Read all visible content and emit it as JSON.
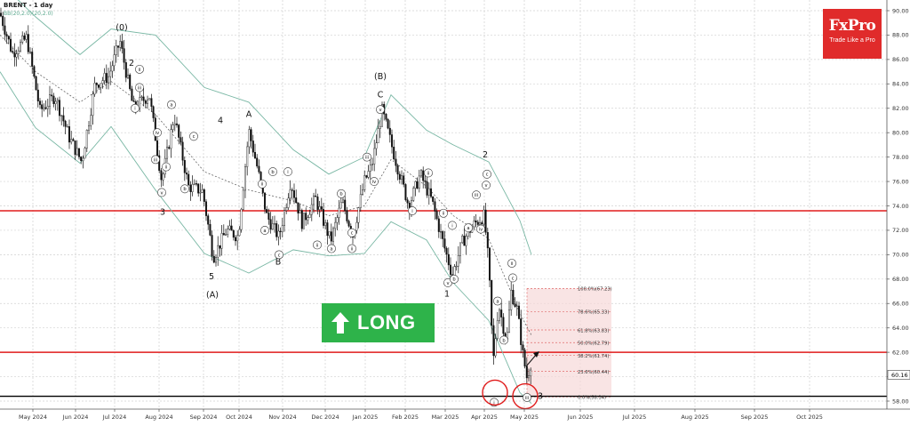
{
  "header": {
    "symbol": "BRENT - 1 day",
    "indicator": "BB(20,2.0)(20,2.0)"
  },
  "brand": {
    "name": "FxPro",
    "tagline": "Trade Like a Pro",
    "color": "#e02b2b"
  },
  "signal": {
    "label": "LONG",
    "color": "#2eb34a",
    "arrow_icon": "arrow-up-icon"
  },
  "chart_data": {
    "type": "candlestick",
    "instrument": "BRENT",
    "timeframe": "1 day",
    "ylim": [
      57.4,
      92.3
    ],
    "y_ticks": [
      58.0,
      60.0,
      62.0,
      64.0,
      66.0,
      68.0,
      70.0,
      72.0,
      74.0,
      76.0,
      78.0,
      80.0,
      82.0,
      84.0,
      86.0,
      88.0,
      90.0
    ],
    "x_ticks": [
      "May 2024",
      "Jun 2024",
      "Jul 2024",
      "Aug 2024",
      "Sep 2024",
      "Oct 2024",
      "Nov 2024",
      "Dec 2024",
      "Jan 2025",
      "Feb 2025",
      "Mar 2025",
      "Apr 2025",
      "May 2025",
      "Jun 2025",
      "Jul 2025",
      "Aug 2025",
      "Sep 2025",
      "Oct 2025"
    ],
    "current_price": "60.16",
    "price_path": [
      [
        0,
        89.8
      ],
      [
        14,
        86.5
      ],
      [
        30,
        87.8
      ],
      [
        45,
        81.8
      ],
      [
        62,
        83.0
      ],
      [
        78,
        79.6
      ],
      [
        92,
        77.6
      ],
      [
        107,
        84.0
      ],
      [
        122,
        84.6
      ],
      [
        135,
        87.5
      ],
      [
        150,
        82.0
      ],
      [
        168,
        83.1
      ],
      [
        182,
        76.0
      ],
      [
        196,
        81.4
      ],
      [
        212,
        75.6
      ],
      [
        228,
        75.2
      ],
      [
        240,
        69.8
      ],
      [
        255,
        72.0
      ],
      [
        268,
        71.5
      ],
      [
        280,
        80.2
      ],
      [
        290,
        77.0
      ],
      [
        300,
        73.2
      ],
      [
        314,
        71.4
      ],
      [
        327,
        76.0
      ],
      [
        340,
        72.6
      ],
      [
        355,
        74.6
      ],
      [
        372,
        71.1
      ],
      [
        385,
        74.4
      ],
      [
        397,
        71.6
      ],
      [
        410,
        76.0
      ],
      [
        418,
        77.2
      ],
      [
        430,
        81.8
      ],
      [
        445,
        77.8
      ],
      [
        460,
        74.0
      ],
      [
        473,
        76.6
      ],
      [
        486,
        74.4
      ],
      [
        497,
        71.4
      ],
      [
        509,
        68.3
      ],
      [
        520,
        71.0
      ],
      [
        532,
        72.4
      ],
      [
        545,
        73.2
      ],
      [
        550,
        69.0
      ],
      [
        555,
        61.2
      ],
      [
        561,
        66.0
      ],
      [
        570,
        62.8
      ],
      [
        575,
        67.0
      ],
      [
        582,
        65.5
      ],
      [
        588,
        62.0
      ],
      [
        593,
        59.9
      ],
      [
        598,
        61.3
      ]
    ],
    "bollinger": {
      "period": 20,
      "deviation": 2.0,
      "upper": [
        [
          0,
          92.3
        ],
        [
          40,
          89.5
        ],
        [
          90,
          86.4
        ],
        [
          125,
          88.5
        ],
        [
          175,
          88.0
        ],
        [
          230,
          83.7
        ],
        [
          280,
          82.5
        ],
        [
          330,
          78.6
        ],
        [
          370,
          76.6
        ],
        [
          410,
          78.0
        ],
        [
          440,
          83.1
        ],
        [
          480,
          80.2
        ],
        [
          510,
          79.0
        ],
        [
          550,
          77.6
        ],
        [
          585,
          72.8
        ],
        [
          598,
          70.0
        ]
      ],
      "middle": [
        [
          0,
          88.0
        ],
        [
          40,
          85.0
        ],
        [
          90,
          82.5
        ],
        [
          125,
          84.2
        ],
        [
          175,
          81.5
        ],
        [
          230,
          76.8
        ],
        [
          280,
          75.3
        ],
        [
          330,
          74.4
        ],
        [
          370,
          73.2
        ],
        [
          410,
          74.0
        ],
        [
          440,
          77.8
        ],
        [
          480,
          75.6
        ],
        [
          510,
          73.2
        ],
        [
          550,
          71.3
        ],
        [
          585,
          65.2
        ],
        [
          598,
          63.4
        ]
      ],
      "lower": [
        [
          0,
          85.0
        ],
        [
          40,
          80.4
        ],
        [
          90,
          77.5
        ],
        [
          125,
          80.5
        ],
        [
          175,
          75.3
        ],
        [
          230,
          70.1
        ],
        [
          280,
          68.5
        ],
        [
          330,
          70.4
        ],
        [
          370,
          69.9
        ],
        [
          410,
          70.1
        ],
        [
          440,
          72.7
        ],
        [
          480,
          71.2
        ],
        [
          510,
          67.7
        ],
        [
          550,
          64.6
        ],
        [
          585,
          58.7
        ],
        [
          598,
          57.8
        ]
      ]
    },
    "horizontal_levels": [
      {
        "price": 73.6,
        "color": "#e01b1b",
        "style": "solid"
      },
      {
        "price": 62.0,
        "color": "#e01b1b",
        "style": "solid"
      },
      {
        "price": 58.4,
        "color": "#000000",
        "style": "solid"
      }
    ],
    "fibonacci": {
      "levels": [
        {
          "label": "100.0%(67.23)",
          "price": 67.23
        },
        {
          "label": "78.6%(65.33)",
          "price": 65.33
        },
        {
          "label": "61.8%(63.83)",
          "price": 63.83
        },
        {
          "label": "50.0%(62.79)",
          "price": 62.79
        },
        {
          "label": "38.2%(61.74)",
          "price": 61.74
        },
        {
          "label": "23.6%(60.44)",
          "price": 60.44
        },
        {
          "label": "0.0%(58.34)",
          "price": 58.34
        }
      ]
    },
    "wave_labels": {
      "plain": [
        {
          "text": "(0)",
          "x": 137,
          "price": 88.6
        },
        {
          "text": "2",
          "x": 148,
          "price": 85.7
        },
        {
          "text": "4",
          "x": 248,
          "price": 81.0
        },
        {
          "text": "3",
          "x": 183,
          "price": 73.5
        },
        {
          "text": "A",
          "x": 280,
          "price": 81.5
        },
        {
          "text": "5",
          "x": 238,
          "price": 68.2
        },
        {
          "text": "(A)",
          "x": 239,
          "price": 66.7
        },
        {
          "text": "B",
          "x": 313,
          "price": 69.4
        },
        {
          "text": "(B)",
          "x": 428,
          "price": 84.6
        },
        {
          "text": "C",
          "x": 428,
          "price": 83.1
        },
        {
          "text": "2",
          "x": 546,
          "price": 78.2
        },
        {
          "text": "1",
          "x": 503,
          "price": 66.8
        },
        {
          "text": "3",
          "x": 608,
          "price": 58.4
        }
      ],
      "circled": [
        {
          "text": "ii",
          "x": 157,
          "price": 85.2
        },
        {
          "text": "iii",
          "x": 157,
          "price": 83.7
        },
        {
          "text": "i",
          "x": 152,
          "price": 82.0
        },
        {
          "text": "a",
          "x": 193,
          "price": 82.3
        },
        {
          "text": "iv",
          "x": 177,
          "price": 80.0
        },
        {
          "text": "c",
          "x": 218,
          "price": 79.7
        },
        {
          "text": "iii",
          "x": 175,
          "price": 77.8
        },
        {
          "text": "b",
          "x": 208,
          "price": 75.4
        },
        {
          "text": "v",
          "x": 182,
          "price": 75.1
        },
        {
          "text": "ii",
          "x": 187,
          "price": 77.2
        },
        {
          "text": "b",
          "x": 307,
          "price": 76.8
        },
        {
          "text": "i",
          "x": 324,
          "price": 76.8
        },
        {
          "text": "a",
          "x": 298,
          "price": 72.0
        },
        {
          "text": "c",
          "x": 314,
          "price": 70.0
        },
        {
          "text": "ii",
          "x": 295,
          "price": 75.8
        },
        {
          "text": "b",
          "x": 384,
          "price": 75.0
        },
        {
          "text": "a",
          "x": 373,
          "price": 70.5
        },
        {
          "text": "c",
          "x": 396,
          "price": 71.8
        },
        {
          "text": "ii",
          "x": 396,
          "price": 70.5
        },
        {
          "text": "ii",
          "x": 357,
          "price": 70.8
        },
        {
          "text": "v",
          "x": 428,
          "price": 81.9
        },
        {
          "text": "iii",
          "x": 413,
          "price": 78.0
        },
        {
          "text": "iv",
          "x": 421,
          "price": 76.0
        },
        {
          "text": "i",
          "x": 464,
          "price": 73.6
        },
        {
          "text": "ii",
          "x": 482,
          "price": 76.7
        },
        {
          "text": "a",
          "x": 527,
          "price": 72.2
        },
        {
          "text": "i",
          "x": 509,
          "price": 72.4
        },
        {
          "text": "ii",
          "x": 499,
          "price": 73.4
        },
        {
          "text": "v",
          "x": 504,
          "price": 67.7
        },
        {
          "text": "b",
          "x": 511,
          "price": 68.0
        },
        {
          "text": "c",
          "x": 548,
          "price": 76.6
        },
        {
          "text": "v",
          "x": 547,
          "price": 75.7
        },
        {
          "text": "iii",
          "x": 536,
          "price": 74.9
        },
        {
          "text": "iv",
          "x": 541,
          "price": 72.1
        },
        {
          "text": "ii",
          "x": 576,
          "price": 69.3
        },
        {
          "text": "c",
          "x": 577,
          "price": 68.1
        },
        {
          "text": "a",
          "x": 560,
          "price": 66.2
        },
        {
          "text": "b",
          "x": 567,
          "price": 63.0
        },
        {
          "text": "i",
          "x": 556,
          "price": 57.9
        },
        {
          "text": "iii",
          "x": 593,
          "price": 58.3
        }
      ]
    },
    "highlight_circles": [
      {
        "x": 557,
        "price": 58.7
      },
      {
        "x": 591,
        "price": 58.4
      }
    ]
  }
}
